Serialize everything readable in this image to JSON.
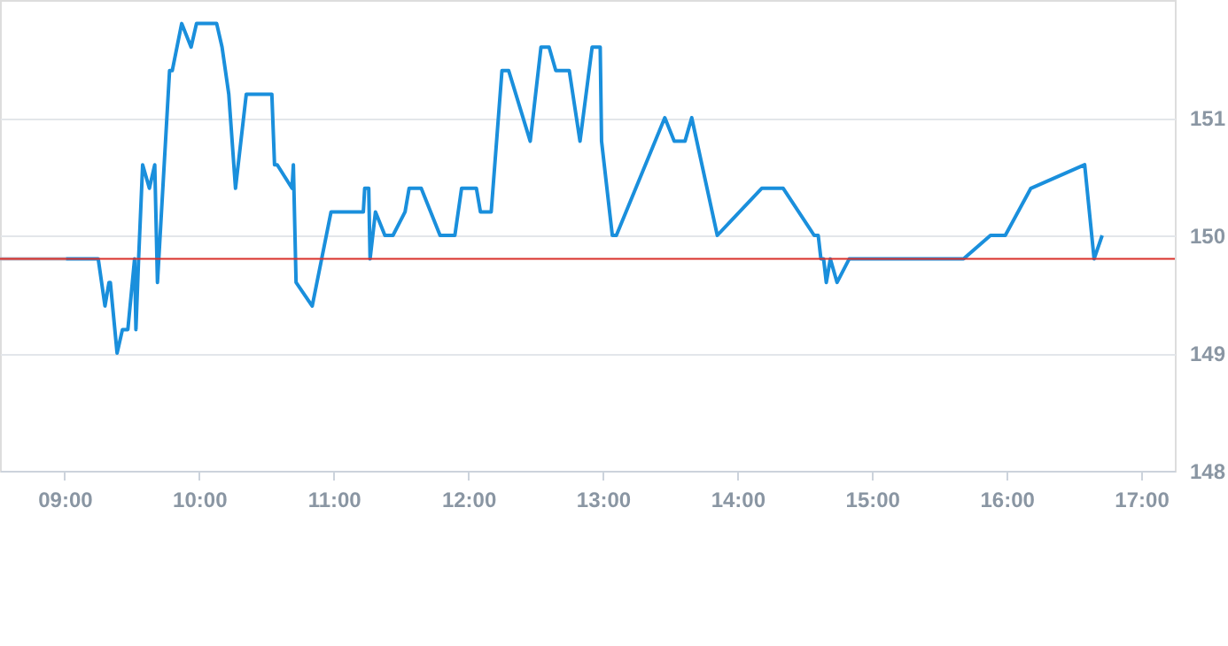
{
  "chart_data": {
    "type": "line",
    "series": [
      {
        "color": "#b4bccb",
        "x": [
          8.52,
          9.01
        ],
        "values": [
          149.8,
          149.8
        ]
      },
      {
        "color": "#1a8fdc",
        "x": [
          9.01,
          9.25,
          9.3,
          9.33,
          9.34,
          9.39,
          9.43,
          9.47,
          9.52,
          9.53,
          9.55,
          9.58,
          9.63,
          9.67,
          9.69,
          9.78,
          9.8,
          9.87,
          9.94,
          9.98,
          10.13,
          10.17,
          10.22,
          10.27,
          10.35,
          10.54,
          10.56,
          10.58,
          10.69,
          10.7,
          10.72,
          10.84,
          10.98,
          11.22,
          11.23,
          11.26,
          11.27,
          11.31,
          11.38,
          11.44,
          11.53,
          11.56,
          11.65,
          11.79,
          11.9,
          11.95,
          12.06,
          12.09,
          12.17,
          12.25,
          12.3,
          12.46,
          12.54,
          12.6,
          12.65,
          12.75,
          12.83,
          12.92,
          12.98,
          12.99,
          13.07,
          13.1,
          13.46,
          13.53,
          13.61,
          13.66,
          13.85,
          14.18,
          14.34,
          14.57,
          14.6,
          14.62,
          14.64,
          14.66,
          14.69,
          14.74,
          14.83,
          15.68,
          15.88,
          15.99,
          16.18,
          16.58,
          16.65,
          16.71
        ],
        "values": [
          149.8,
          149.8,
          149.4,
          149.6,
          149.6,
          149.0,
          149.2,
          149.2,
          149.8,
          149.2,
          149.8,
          150.6,
          150.4,
          150.6,
          149.6,
          151.4,
          151.4,
          151.8,
          151.6,
          151.8,
          151.8,
          151.6,
          151.2,
          150.4,
          151.2,
          151.2,
          150.6,
          150.6,
          150.4,
          150.6,
          149.6,
          149.4,
          150.2,
          150.2,
          150.4,
          150.4,
          149.8,
          150.2,
          150.0,
          150.0,
          150.2,
          150.4,
          150.4,
          150.0,
          150.0,
          150.4,
          150.4,
          150.2,
          150.2,
          151.4,
          151.4,
          150.8,
          151.6,
          151.6,
          151.4,
          151.4,
          150.8,
          151.6,
          151.6,
          150.8,
          150.0,
          150.0,
          151.0,
          150.8,
          150.8,
          151.0,
          150.0,
          150.4,
          150.4,
          150.0,
          150.0,
          149.8,
          149.8,
          149.6,
          149.8,
          149.6,
          149.8,
          149.8,
          150.0,
          150.0,
          150.4,
          150.6,
          149.8,
          150.0
        ]
      }
    ],
    "xlim": [
      8.52,
      17.25
    ],
    "xticks": [
      {
        "value": 9,
        "label": "09:00"
      },
      {
        "value": 10,
        "label": "10:00"
      },
      {
        "value": 11,
        "label": "11:00"
      },
      {
        "value": 12,
        "label": "12:00"
      },
      {
        "value": 13,
        "label": "13:00"
      },
      {
        "value": 14,
        "label": "14:00"
      },
      {
        "value": 15,
        "label": "15:00"
      },
      {
        "value": 16,
        "label": "16:00"
      },
      {
        "value": 17,
        "label": "17:00"
      }
    ],
    "ylim": [
      148,
      152
    ],
    "yticks": [
      148,
      149,
      150,
      151
    ],
    "ref_lines": [
      {
        "axis": "y",
        "value": 149.8,
        "color": "#d9302a"
      }
    ],
    "grid": "y",
    "marker": "none",
    "line_style": "solid"
  }
}
